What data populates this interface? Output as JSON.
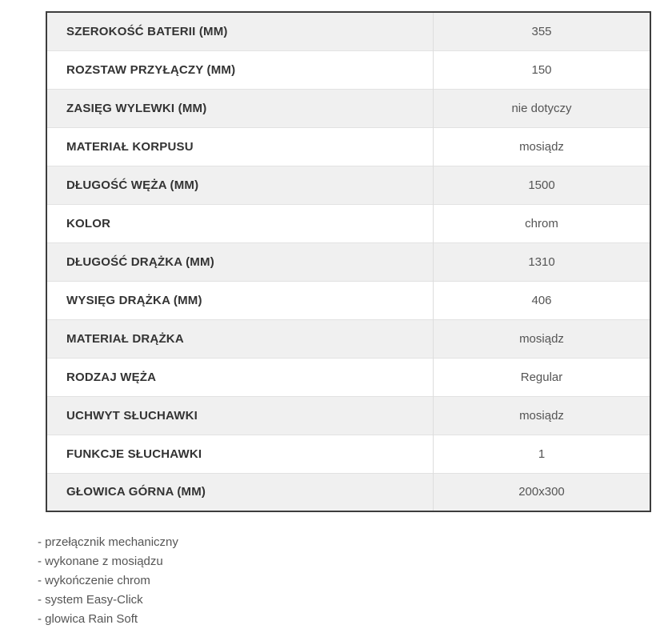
{
  "colors": {
    "table_border": "#3d3d3d",
    "row_stripe": "#f0f0f0",
    "row_divider": "#e2e2e2",
    "label_text": "#333333",
    "value_text": "#555555",
    "background": "#ffffff"
  },
  "spec_table": {
    "rows": [
      {
        "label": "SZEROKOŚĆ BATERII (MM)",
        "value": "355"
      },
      {
        "label": "ROZSTAW PRZYŁĄCZY (MM)",
        "value": "150"
      },
      {
        "label": "ZASIĘG WYLEWKI (MM)",
        "value": "nie dotyczy"
      },
      {
        "label": "MATERIAŁ KORPUSU",
        "value": "mosiądz"
      },
      {
        "label": "DŁUGOŚĆ WĘŻA (MM)",
        "value": "1500"
      },
      {
        "label": "KOLOR",
        "value": "chrom"
      },
      {
        "label": "DŁUGOŚĆ DRĄŻKA (MM)",
        "value": "1310"
      },
      {
        "label": "WYSIĘG DRĄŻKA (MM)",
        "value": "406"
      },
      {
        "label": "MATERIAŁ DRĄŻKA",
        "value": "mosiądz"
      },
      {
        "label": "RODZAJ WĘŻA",
        "value": "Regular"
      },
      {
        "label": "UCHWYT SŁUCHAWKI",
        "value": "mosiądz"
      },
      {
        "label": "FUNKCJE SŁUCHAWKI",
        "value": "1"
      },
      {
        "label": "GŁOWICA GÓRNA (MM)",
        "value": "200x300"
      }
    ]
  },
  "features": {
    "items": [
      "- przełącznik mechaniczny",
      "- wykonane z mosiądzu",
      "- wykończenie chrom",
      "- system Easy-Click",
      "- glowica Rain Soft"
    ]
  }
}
